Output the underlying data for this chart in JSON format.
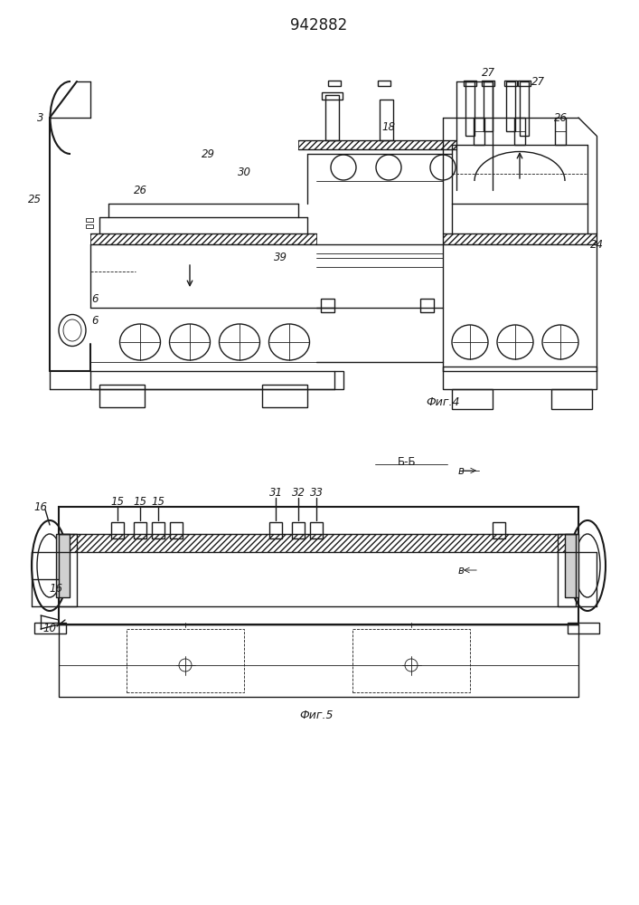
{
  "title": "942882",
  "title_fontsize": 12,
  "fig_label1": "Фиг.4",
  "fig_label2": "Фиг.5",
  "section_label": "Б-Б",
  "bg_color": "#ffffff",
  "line_color": "#1a1a1a",
  "hatch_color": "#1a1a1a",
  "label_fontsize": 8.5,
  "italic_fontsize": 9
}
